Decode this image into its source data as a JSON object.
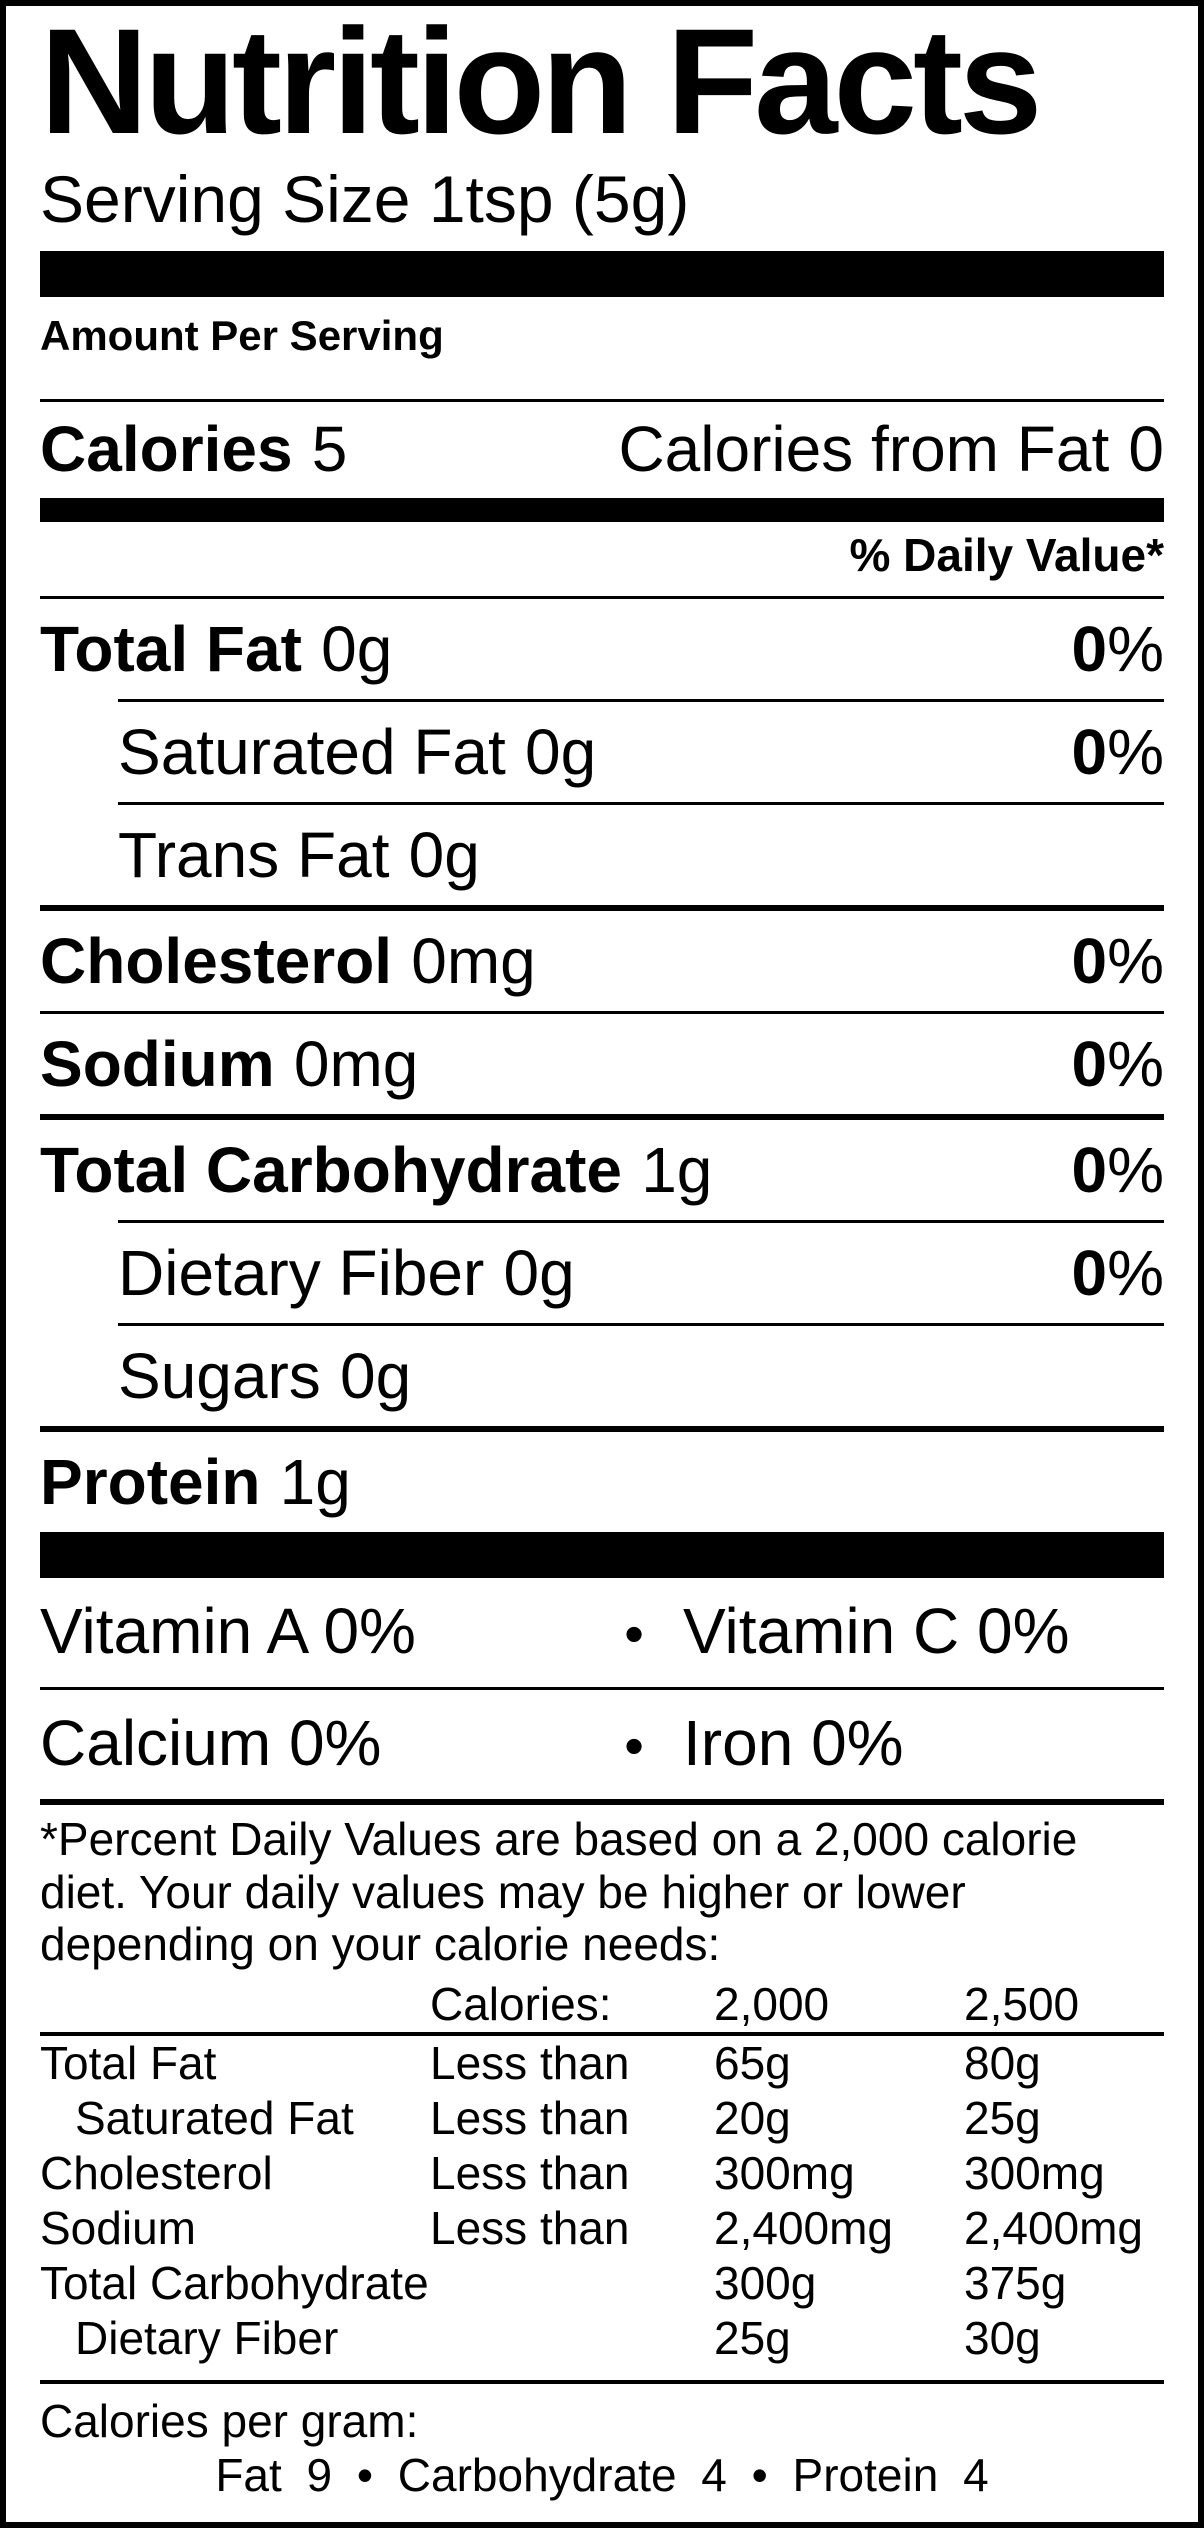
{
  "bullet": "•",
  "colors": {
    "ink": "#000000",
    "paper": "#ffffff"
  },
  "header": {
    "title": "Nutrition Facts",
    "serving_size": "Serving Size 1tsp (5g)",
    "amount_per_serving": "Amount Per Serving"
  },
  "calories_row": {
    "label": "Calories",
    "value": "5",
    "from_fat_label": "Calories from Fat",
    "from_fat_value": "0"
  },
  "daily_value_header": "% Daily Value*",
  "nutrients": [
    {
      "name": "Total Fat",
      "amount": "0g",
      "dv": "0%",
      "bold": true,
      "indent": false,
      "rule_after": "thin-indent"
    },
    {
      "name": "Saturated Fat",
      "amount": "0g",
      "dv": "0%",
      "bold": false,
      "indent": true,
      "rule_after": "thin-indent"
    },
    {
      "name": "Trans Fat",
      "amount": "0g",
      "dv": null,
      "bold": false,
      "indent": true,
      "rule_after": "medium"
    },
    {
      "name": "Cholesterol",
      "amount": "0mg",
      "dv": "0%",
      "bold": true,
      "indent": false,
      "rule_after": "thin"
    },
    {
      "name": "Sodium",
      "amount": "0mg",
      "dv": "0%",
      "bold": true,
      "indent": false,
      "rule_after": "medium"
    },
    {
      "name": "Total Carbohydrate",
      "amount": "1g",
      "dv": "0%",
      "bold": true,
      "indent": false,
      "rule_after": "thin-indent"
    },
    {
      "name": "Dietary Fiber",
      "amount": "0g",
      "dv": "0%",
      "bold": false,
      "indent": true,
      "rule_after": "thin-indent"
    },
    {
      "name": "Sugars",
      "amount": "0g",
      "dv": null,
      "bold": false,
      "indent": true,
      "rule_after": "medium"
    },
    {
      "name": "Protein",
      "amount": "1g",
      "dv": null,
      "bold": true,
      "indent": false,
      "rule_after": "none"
    }
  ],
  "vitamins": [
    {
      "left": "Vitamin A 0%",
      "right": "Vitamin C 0%",
      "rule_after": "thin"
    },
    {
      "left": "Calcium 0%",
      "right": "Iron 0%",
      "rule_after": "medium"
    }
  ],
  "footnote": "*Percent Daily Values are based on a 2,000 calorie diet. Your daily values may be higher or lower depending on your calorie needs:",
  "dv_table": {
    "header": {
      "calories_label": "Calories:",
      "col_2000": "2,000",
      "col_2500": "2,500"
    },
    "rows": [
      {
        "name": "Total Fat",
        "qualifier": "Less than",
        "v2000": "65g",
        "v2500": "80g",
        "indent": false
      },
      {
        "name": "Saturated Fat",
        "qualifier": "Less than",
        "v2000": "20g",
        "v2500": "25g",
        "indent": true
      },
      {
        "name": "Cholesterol",
        "qualifier": "Less than",
        "v2000": "300mg",
        "v2500": "300mg",
        "indent": false
      },
      {
        "name": "Sodium",
        "qualifier": "Less than",
        "v2000": "2,400mg",
        "v2500": "2,400mg",
        "indent": false
      },
      {
        "name": "Total Carbohydrate",
        "qualifier": "",
        "v2000": "300g",
        "v2500": "375g",
        "indent": false
      },
      {
        "name": "Dietary Fiber",
        "qualifier": "",
        "v2000": "25g",
        "v2500": "30g",
        "indent": true
      }
    ]
  },
  "calories_per_gram": {
    "intro": "Calories per gram:",
    "parts": [
      "Fat 9",
      "Carbohydrate 4",
      "Protein 4"
    ]
  }
}
